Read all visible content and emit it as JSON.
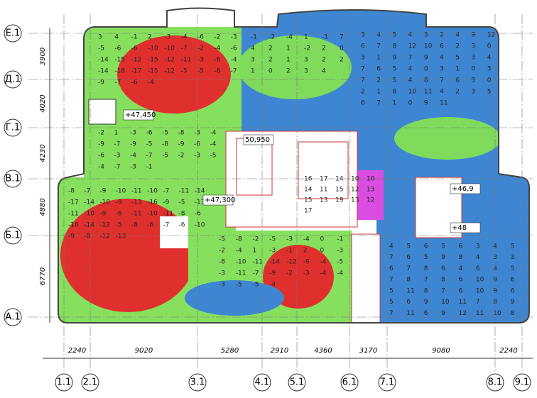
{
  "axes_rows": [
    "Е.1",
    "Д.1",
    "Г.1",
    "В.1",
    "Б.1",
    "А.1"
  ],
  "axes_cols": [
    "1.1",
    "2.1",
    "3.1",
    "4.1",
    "5.1",
    "6.1",
    "7.1",
    "8.1",
    "9.1"
  ],
  "dims_bottom": [
    2240,
    9020,
    5280,
    2910,
    4360,
    3170,
    9080,
    2240
  ],
  "dims_left": [
    3900,
    4020,
    4230,
    4880,
    6770
  ],
  "elevations": [
    "+47,450",
    "50,950",
    "+47,300",
    "+46,9",
    "+48"
  ],
  "zones": [
    {
      "values": [
        3,
        4,
        -1,
        2,
        -3,
        -4,
        -6,
        -2,
        -3,
        -5,
        -6,
        -6,
        -10,
        -10,
        -7,
        -2,
        -4,
        -6,
        -14,
        -15,
        -12,
        -15,
        -12,
        -11,
        -3,
        -6,
        -4,
        -14,
        -18,
        -17,
        -15,
        -12,
        -5,
        -5,
        -6,
        -7,
        -9,
        -7,
        -6,
        -4
      ]
    },
    {
      "values": [
        -2,
        1,
        -3,
        -6,
        -5,
        -8,
        -3,
        -4,
        -9,
        -7,
        -9,
        -5,
        -8,
        -9,
        -6,
        -4,
        -6,
        -3,
        -4,
        -7,
        -5,
        -2,
        -3,
        -5,
        -4,
        -7,
        -3,
        -1
      ]
    },
    {
      "values": [
        3,
        4,
        5,
        4,
        3,
        2,
        4,
        9,
        12,
        6,
        7,
        8,
        12,
        10,
        6,
        2,
        3,
        0,
        3,
        1,
        9,
        7,
        9,
        4,
        5,
        3,
        4,
        7,
        6,
        5,
        4,
        0,
        3,
        1,
        0,
        3,
        7,
        2,
        5,
        4,
        8,
        7,
        6,
        9,
        0,
        2,
        1,
        8,
        10,
        11,
        4,
        2,
        3,
        5,
        6,
        7,
        1,
        0,
        9,
        11
      ]
    },
    {
      "values": [
        -1,
        -2,
        -4,
        1,
        -1,
        7,
        4,
        2,
        1,
        -2,
        2,
        0,
        3,
        2,
        1,
        3,
        2,
        2,
        1,
        0,
        2,
        3,
        4
      ]
    },
    {
      "values": [
        -8,
        -7,
        -9,
        -10,
        -11,
        -10,
        -7,
        -11,
        -14,
        -17,
        -14,
        -10,
        -9,
        -13,
        -16,
        -9,
        -5,
        -13,
        -11,
        -10,
        -9,
        -6,
        -11,
        -10,
        -11,
        -8,
        -6,
        -10,
        -14,
        -12,
        -5,
        -8,
        -6,
        -7,
        -6,
        -10,
        -9,
        -8,
        -12,
        -13
      ]
    },
    {
      "values": [
        -5,
        -8,
        -2,
        -5,
        -3,
        -4,
        0,
        -1,
        -2,
        -4,
        1,
        -3,
        -1,
        2,
        0,
        -3,
        -8,
        -10,
        -11,
        -14,
        -12,
        -9,
        -4,
        -5,
        -3,
        -11,
        -7,
        -9,
        -2,
        -3,
        -4,
        -4,
        -3,
        -5,
        -5,
        -4
      ]
    },
    {
      "values": [
        4,
        5,
        6,
        5,
        6,
        3,
        4,
        5,
        7,
        6,
        5,
        9,
        8,
        4,
        3,
        3,
        6,
        7,
        8,
        6,
        4,
        6,
        4,
        5,
        7,
        8,
        7,
        8,
        6,
        10,
        9,
        6,
        5,
        11,
        8,
        7,
        6,
        10,
        9,
        6,
        5,
        6,
        9,
        10,
        11,
        7,
        8,
        9,
        7,
        11,
        6,
        9,
        12,
        11,
        10,
        8
      ]
    },
    {
      "values": [
        16,
        17,
        14,
        10,
        10,
        14,
        11,
        15,
        12,
        13,
        15,
        13,
        19,
        13,
        12,
        17
      ]
    }
  ]
}
